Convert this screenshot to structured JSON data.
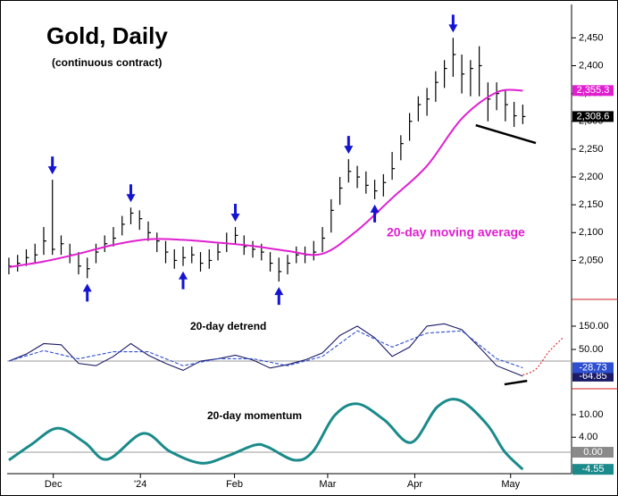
{
  "chart_data": [
    {
      "type": "ohlc",
      "title": "Gold, Daily",
      "subtitle": "(continuous contract)",
      "color": "#000000",
      "high": [
        2055,
        2060,
        2070,
        2080,
        2110,
        2195,
        2095,
        2080,
        2065,
        2055,
        2080,
        2095,
        2110,
        2130,
        2145,
        2140,
        2120,
        2100,
        2085,
        2070,
        2075,
        2075,
        2065,
        2070,
        2080,
        2100,
        2110,
        2095,
        2085,
        2080,
        2065,
        2055,
        2060,
        2075,
        2075,
        2085,
        2110,
        2160,
        2200,
        2232,
        2220,
        2210,
        2195,
        2205,
        2245,
        2275,
        2315,
        2345,
        2360,
        2390,
        2410,
        2450,
        2420,
        2410,
        2435,
        2370,
        2370,
        2355,
        2335,
        2330
      ],
      "low": [
        2025,
        2030,
        2040,
        2045,
        2060,
        2060,
        2060,
        2045,
        2025,
        2018,
        2045,
        2065,
        2075,
        2095,
        2115,
        2105,
        2085,
        2065,
        2045,
        2035,
        2040,
        2045,
        2030,
        2035,
        2050,
        2065,
        2080,
        2060,
        2055,
        2050,
        2030,
        2012,
        2025,
        2045,
        2045,
        2050,
        2065,
        2100,
        2150,
        2190,
        2180,
        2170,
        2160,
        2165,
        2195,
        2230,
        2265,
        2300,
        2310,
        2335,
        2360,
        2380,
        2350,
        2345,
        2345,
        2300,
        2320,
        2300,
        2290,
        2295
      ],
      "close": [
        2040,
        2045,
        2055,
        2060,
        2085,
        2070,
        2080,
        2060,
        2040,
        2035,
        2065,
        2080,
        2090,
        2115,
        2135,
        2125,
        2100,
        2085,
        2065,
        2050,
        2055,
        2060,
        2045,
        2050,
        2065,
        2080,
        2095,
        2075,
        2070,
        2065,
        2045,
        2030,
        2045,
        2060,
        2060,
        2065,
        2090,
        2140,
        2180,
        2210,
        2200,
        2185,
        2175,
        2190,
        2215,
        2260,
        2300,
        2330,
        2340,
        2370,
        2395,
        2420,
        2385,
        2395,
        2400,
        2340,
        2350,
        2330,
        2310,
        2308.6
      ],
      "close_label": {
        "value": 2308.6,
        "label": "2,308.6"
      },
      "series": [
        {
          "name": "20-day moving average",
          "color": "#e01fd0",
          "smooth": true,
          "x": [
            0,
            4,
            8,
            12,
            16,
            20,
            24,
            28,
            32,
            36,
            40,
            44,
            48,
            52,
            56,
            59
          ],
          "values": [
            2038,
            2048,
            2062,
            2078,
            2088,
            2087,
            2082,
            2076,
            2067,
            2062,
            2104,
            2162,
            2220,
            2305,
            2352,
            2355.3
          ],
          "end_label": {
            "value": 2355.3,
            "label": "2,355.3"
          }
        }
      ],
      "down_arrows": [
        5,
        14,
        26,
        39,
        51
      ],
      "up_arrows": [
        9,
        20,
        31,
        42
      ],
      "arrow_color": "#1414d2",
      "trendline": {
        "x": [
          53.6,
          60.5
        ],
        "values": [
          2293,
          2261
        ],
        "color": "#000000"
      },
      "ylim": [
        1980,
        2510
      ],
      "yticks": [
        {
          "value": 2050,
          "label": "2,050"
        },
        {
          "value": 2100,
          "label": "2,100"
        },
        {
          "value": 2150,
          "label": "2,150"
        },
        {
          "value": 2200,
          "label": "2,200"
        },
        {
          "value": 2250,
          "label": "2,250"
        },
        {
          "value": 2300,
          "label": "2,300"
        },
        {
          "value": 2350,
          "label": "2,350"
        },
        {
          "value": 2400,
          "label": "2,400"
        },
        {
          "value": 2450,
          "label": "2,450"
        }
      ]
    },
    {
      "type": "line",
      "title": "20-day detrend",
      "series": [
        {
          "color": "#1a1a66",
          "x": [
            0,
            2,
            4,
            6,
            8,
            10,
            12,
            14,
            16,
            18,
            20,
            22,
            24,
            26,
            28,
            30,
            32,
            34,
            36,
            38,
            40,
            42,
            44,
            46,
            48,
            50,
            52,
            54,
            56,
            58,
            59
          ],
          "values": [
            0,
            30,
            75,
            70,
            -10,
            -20,
            20,
            75,
            25,
            -10,
            -40,
            0,
            10,
            25,
            5,
            -30,
            -15,
            5,
            35,
            110,
            150,
            100,
            20,
            60,
            150,
            160,
            135,
            60,
            -20,
            -50,
            -64.85
          ],
          "end_label": {
            "value": -64.85,
            "label": "-64.85"
          }
        },
        {
          "color": "#2d4fd0",
          "dashed": true,
          "x": [
            0,
            4,
            8,
            12,
            16,
            20,
            24,
            28,
            32,
            36,
            40,
            44,
            48,
            52,
            56,
            59
          ],
          "values": [
            0,
            45,
            10,
            40,
            40,
            -20,
            10,
            10,
            -20,
            20,
            130,
            60,
            120,
            130,
            10,
            -28.73
          ],
          "end_label": {
            "value": -28.73,
            "label": "-28.73"
          }
        },
        {
          "color": "#e02020",
          "dotted": true,
          "smooth": true,
          "x": [
            59,
            60.5,
            62,
            63.6
          ],
          "values": [
            -60,
            -35,
            40,
            100
          ]
        }
      ],
      "ref_line": 0,
      "trendline": {
        "x": [
          56.9,
          59.5
        ],
        "values": [
          -100,
          -85
        ],
        "color": "#000000"
      },
      "ylim": [
        -119,
        265
      ],
      "yticks": [
        {
          "value": 150,
          "label": "150.00"
        },
        {
          "value": 50,
          "label": "50.00"
        }
      ]
    },
    {
      "type": "line",
      "title": "20-day momentum",
      "series": [
        {
          "color": "#1a8a8a",
          "width": 3,
          "smooth": true,
          "x": [
            0,
            2.6,
            5.6,
            8.7,
            11.3,
            15.4,
            18.5,
            22.1,
            25.1,
            28.2,
            29.7,
            32.8,
            34.9,
            37.4,
            40,
            43.1,
            46.2,
            49.2,
            51.8,
            54.9,
            56.9,
            59
          ],
          "values": [
            -2.1,
            2.1,
            6.4,
            2.6,
            -1.9,
            5,
            0.2,
            -2.9,
            -1,
            1.9,
            1.4,
            -2.1,
            0.2,
            9.8,
            12.9,
            8.6,
            2.6,
            12.1,
            13.8,
            7.4,
            0.2,
            -4.55
          ],
          "end_label": {
            "value": -4.55,
            "label": "-4.55"
          }
        }
      ],
      "ref_line": {
        "value": 0,
        "label": "0.00"
      },
      "ylim": [
        -5.7,
        16.9
      ],
      "yticks": [
        {
          "value": 10,
          "label": "10.00"
        },
        {
          "value": 4,
          "label": "4.00"
        }
      ],
      "xlim": [
        -0.2,
        64.6
      ],
      "xticks": [
        {
          "value": 5.1,
          "label": "Dec"
        },
        {
          "value": 15.1,
          "label": "'24"
        },
        {
          "value": 25.9,
          "label": "Feb"
        },
        {
          "value": 36.6,
          "label": "Mar"
        },
        {
          "value": 46.6,
          "label": "Apr"
        },
        {
          "value": 57.6,
          "label": "May"
        }
      ]
    }
  ]
}
